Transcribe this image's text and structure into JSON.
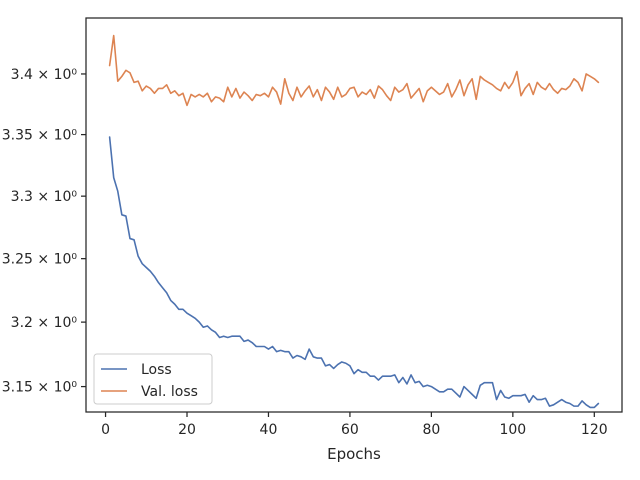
{
  "chart_data": {
    "type": "line",
    "title": "",
    "xlabel": "Epochs",
    "ylabel": "",
    "xlim": [
      -4.8,
      126.8
    ],
    "ylim": [
      3.1305,
      3.4468
    ],
    "yscale": "log",
    "grid": false,
    "legend_position": "lower-left",
    "x_ticks": [
      {
        "value": 0,
        "label": "0"
      },
      {
        "value": 20,
        "label": "20"
      },
      {
        "value": 40,
        "label": "40"
      },
      {
        "value": 60,
        "label": "60"
      },
      {
        "value": 80,
        "label": "80"
      },
      {
        "value": 100,
        "label": "100"
      },
      {
        "value": 120,
        "label": "120"
      }
    ],
    "y_ticks": [
      {
        "value": 3.15,
        "label": "3.15 × 10⁰"
      },
      {
        "value": 3.2,
        "label": "3.2 × 10⁰"
      },
      {
        "value": 3.25,
        "label": "3.25 × 10⁰"
      },
      {
        "value": 3.3,
        "label": "3.3 × 10⁰"
      },
      {
        "value": 3.35,
        "label": "3.35 × 10⁰"
      },
      {
        "value": 3.4,
        "label": "3.4 × 10⁰"
      }
    ],
    "x_start": 1,
    "series": [
      {
        "name": "Loss",
        "color": "#4c72b0",
        "values": [
          3.348,
          3.315,
          3.304,
          3.285,
          3.284,
          3.266,
          3.265,
          3.252,
          3.246,
          3.243,
          3.24,
          3.236,
          3.231,
          3.227,
          3.223,
          3.217,
          3.214,
          3.21,
          3.21,
          3.207,
          3.205,
          3.203,
          3.2,
          3.196,
          3.197,
          3.194,
          3.192,
          3.188,
          3.189,
          3.188,
          3.189,
          3.189,
          3.189,
          3.185,
          3.186,
          3.184,
          3.181,
          3.181,
          3.181,
          3.179,
          3.181,
          3.177,
          3.178,
          3.177,
          3.177,
          3.172,
          3.174,
          3.173,
          3.171,
          3.179,
          3.173,
          3.172,
          3.172,
          3.166,
          3.167,
          3.164,
          3.167,
          3.169,
          3.168,
          3.166,
          3.16,
          3.163,
          3.161,
          3.161,
          3.158,
          3.158,
          3.155,
          3.158,
          3.158,
          3.158,
          3.159,
          3.153,
          3.157,
          3.152,
          3.159,
          3.153,
          3.154,
          3.15,
          3.151,
          3.15,
          3.148,
          3.146,
          3.146,
          3.148,
          3.148,
          3.145,
          3.142,
          3.15,
          3.147,
          3.144,
          3.141,
          3.151,
          3.153,
          3.153,
          3.153,
          3.14,
          3.147,
          3.142,
          3.141,
          3.143,
          3.143,
          3.143,
          3.144,
          3.138,
          3.143,
          3.14,
          3.14,
          3.141,
          3.135,
          3.136,
          3.138,
          3.14,
          3.138,
          3.137,
          3.135,
          3.135,
          3.139,
          3.136,
          3.134,
          3.134,
          3.137
        ]
      },
      {
        "name": "Val. loss",
        "color": "#dd8452",
        "values": [
          3.407,
          3.432,
          3.394,
          3.398,
          3.403,
          3.401,
          3.393,
          3.394,
          3.386,
          3.39,
          3.388,
          3.384,
          3.388,
          3.388,
          3.391,
          3.384,
          3.386,
          3.382,
          3.384,
          3.374,
          3.383,
          3.381,
          3.383,
          3.381,
          3.384,
          3.377,
          3.381,
          3.38,
          3.377,
          3.389,
          3.381,
          3.388,
          3.38,
          3.385,
          3.382,
          3.378,
          3.383,
          3.382,
          3.384,
          3.381,
          3.389,
          3.385,
          3.375,
          3.396,
          3.384,
          3.378,
          3.389,
          3.381,
          3.386,
          3.39,
          3.381,
          3.387,
          3.378,
          3.389,
          3.385,
          3.379,
          3.389,
          3.381,
          3.383,
          3.388,
          3.389,
          3.381,
          3.385,
          3.383,
          3.387,
          3.38,
          3.39,
          3.387,
          3.382,
          3.378,
          3.389,
          3.385,
          3.387,
          3.392,
          3.38,
          3.384,
          3.388,
          3.377,
          3.386,
          3.389,
          3.386,
          3.383,
          3.385,
          3.392,
          3.381,
          3.387,
          3.395,
          3.382,
          3.391,
          3.396,
          3.379,
          3.398,
          3.395,
          3.393,
          3.391,
          3.388,
          3.386,
          3.393,
          3.388,
          3.393,
          3.402,
          3.382,
          3.388,
          3.392,
          3.383,
          3.393,
          3.389,
          3.387,
          3.392,
          3.387,
          3.384,
          3.388,
          3.387,
          3.39,
          3.396,
          3.393,
          3.386,
          3.4,
          3.398,
          3.396,
          3.393
        ]
      }
    ]
  }
}
